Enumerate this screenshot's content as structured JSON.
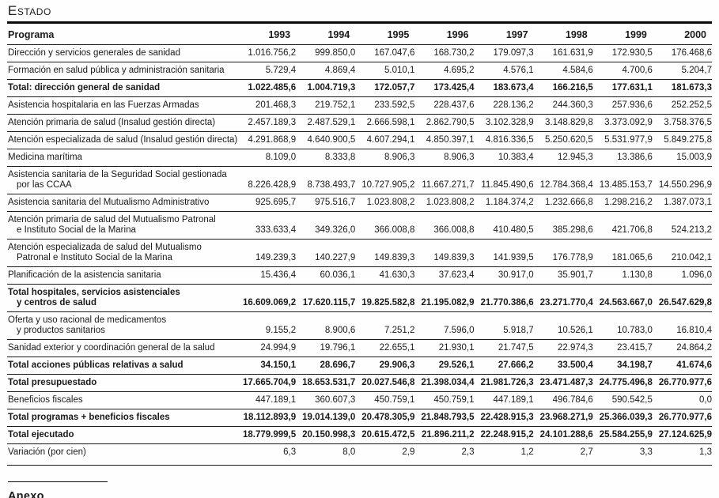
{
  "page": {
    "title": "Estado",
    "annex_heading": "Anexo"
  },
  "table": {
    "columns": [
      "Programa",
      "1993",
      "1994",
      "1995",
      "1996",
      "1997",
      "1998",
      "1999",
      "2000"
    ],
    "rows": [
      {
        "label": [
          "Dirección y servicios generales de sanidad"
        ],
        "bold": false,
        "values": [
          "1.016.756,2",
          "999.850,0",
          "167.047,6",
          "168.730,2",
          "179.097,3",
          "161.631,9",
          "172.930,5",
          "176.468,6"
        ]
      },
      {
        "label": [
          "Formación en salud pública y administración sanitaria"
        ],
        "bold": false,
        "values": [
          "5.729,4",
          "4.869,4",
          "5.010,1",
          "4.695,2",
          "4.576,1",
          "4.584,6",
          "4.700,6",
          "5.204,7"
        ]
      },
      {
        "label": [
          "Total: dirección general de sanidad"
        ],
        "bold": true,
        "values": [
          "1.022.485,6",
          "1.004.719,3",
          "172.057,7",
          "173.425,4",
          "183.673,4",
          "166.216,5",
          "177.631,1",
          "181.673,3"
        ]
      },
      {
        "label": [
          "Asistencia hospitalaria en las Fuerzas Armadas"
        ],
        "bold": false,
        "values": [
          "201.468,3",
          "219.752,1",
          "233.592,5",
          "228.437,6",
          "228.136,2",
          "244.360,3",
          "257.936,6",
          "252.252,5"
        ]
      },
      {
        "label": [
          "Atención primaria de salud (Insalud gestión directa)"
        ],
        "bold": false,
        "values": [
          "2.457.189,3",
          "2.487.529,1",
          "2.666.598,1",
          "2.862.790,5",
          "3.102.328,9",
          "3.148.829,8",
          "3.373.092,9",
          "3.758.376,5"
        ]
      },
      {
        "label": [
          "Atención especializada de salud (Insalud gestión directa)"
        ],
        "bold": false,
        "values": [
          "4.291.868,9",
          "4.640.900,5",
          "4.607.294,1",
          "4.850.397,1",
          "4.816.336,5",
          "5.250.620,5",
          "5.531.977,9",
          "5.849.275,8"
        ]
      },
      {
        "label": [
          "Medicina marítima"
        ],
        "bold": false,
        "values": [
          "8.109,0",
          "8.333,8",
          "8.906,3",
          "8.906,3",
          "10.383,4",
          "12.945,3",
          "13.386,6",
          "15.003,9"
        ]
      },
      {
        "label": [
          "Asistencia sanitaria de la Seguridad Social gestionada",
          "por las CCAA"
        ],
        "bold": false,
        "values": [
          "8.226.428,9",
          "8.738.493,7",
          "10.727.905,2",
          "11.667.271,7",
          "11.845.490,6",
          "12.784.368,4",
          "13.485.153,7",
          "14.550.296,9"
        ]
      },
      {
        "label": [
          "Asistencia sanitaria del Mutualismo Administrativo"
        ],
        "bold": false,
        "values": [
          "925.695,7",
          "975.516,7",
          "1.023.808,2",
          "1.023.808,2",
          "1.184.374,2",
          "1.232.666,8",
          "1.298.216,2",
          "1.387.073,1"
        ]
      },
      {
        "label": [
          "Atención primaria de salud del Mutualismo Patronal",
          "e Instituto Social de la Marina"
        ],
        "bold": false,
        "values": [
          "333.633,4",
          "349.326,0",
          "366.008,8",
          "366.008,8",
          "410.480,5",
          "385.298,6",
          "421.706,8",
          "524.213,2"
        ]
      },
      {
        "label": [
          "Atención especializada de salud del Mutualismo",
          "Patronal e Instituto Social de la Marina"
        ],
        "bold": false,
        "values": [
          "149.239,3",
          "140.227,9",
          "149.839,3",
          "149.839,3",
          "141.939,5",
          "176.778,9",
          "181.065,6",
          "210.042,1"
        ]
      },
      {
        "label": [
          "Planificación de la asistencia sanitaria"
        ],
        "bold": false,
        "values": [
          "15.436,4",
          "60.036,1",
          "41.630,3",
          "37.623,4",
          "30.917,0",
          "35.901,7",
          "1.130,8",
          "1.096,0"
        ]
      },
      {
        "label": [
          "Total hospitales, servicios asistenciales",
          "y centros de salud"
        ],
        "bold": true,
        "values": [
          "16.609.069,2",
          "17.620.115,7",
          "19.825.582,8",
          "21.195.082,9",
          "21.770.386,6",
          "23.271.770,4",
          "24.563.667,0",
          "26.547.629,8"
        ]
      },
      {
        "label": [
          "Oferta y uso racional de medicamentos",
          "y productos sanitarios"
        ],
        "bold": false,
        "values": [
          "9.155,2",
          "8.900,6",
          "7.251,2",
          "7.596,0",
          "5.918,7",
          "10.526,1",
          "10.783,0",
          "16.810,4"
        ]
      },
      {
        "label": [
          "Sanidad exterior y coordinación general de la salud"
        ],
        "bold": false,
        "values": [
          "24.994,9",
          "19.796,1",
          "22.655,1",
          "21.930,1",
          "21.747,5",
          "22.974,3",
          "23.415,7",
          "24.864,2"
        ]
      },
      {
        "label": [
          "Total acciones públicas relativas a salud"
        ],
        "bold": true,
        "values": [
          "34.150,1",
          "28.696,7",
          "29.906,3",
          "29.526,1",
          "27.666,2",
          "33.500,4",
          "34.198,7",
          "41.674,6"
        ]
      },
      {
        "label": [
          "Total presupuestado"
        ],
        "bold": true,
        "values": [
          "17.665.704,9",
          "18.653.531,7",
          "20.027.546,8",
          "21.398.034,4",
          "21.981.726,3",
          "23.471.487,3",
          "24.775.496,8",
          "26.770.977,6"
        ]
      },
      {
        "label": [
          "Beneficios fiscales"
        ],
        "bold": false,
        "values": [
          "447.189,1",
          "360.607,3",
          "450.759,1",
          "450.759,1",
          "447.189,1",
          "496.784,6",
          "590.542,5",
          "0,0"
        ]
      },
      {
        "label": [
          "Total programas + beneficios fiscales"
        ],
        "bold": true,
        "values": [
          "18.112.893,9",
          "19.014.139,0",
          "20.478.305,9",
          "21.848.793,5",
          "22.428.915,3",
          "23.968.271,9",
          "25.366.039,3",
          "26.770.977,6"
        ]
      },
      {
        "label": [
          "Total ejecutado"
        ],
        "bold": true,
        "values": [
          "18.779.999,5",
          "20.150.998,3",
          "20.615.472,5",
          "21.896.211,2",
          "22.248.915,2",
          "24.101.288,6",
          "25.584.255,9",
          "27.124.625,9"
        ]
      },
      {
        "label": [
          "Variación (por cien)"
        ],
        "bold": false,
        "values": [
          "6,3",
          "8,0",
          "2,9",
          "2,3",
          "1,2",
          "2,7",
          "3,3",
          "1,3"
        ]
      }
    ]
  }
}
